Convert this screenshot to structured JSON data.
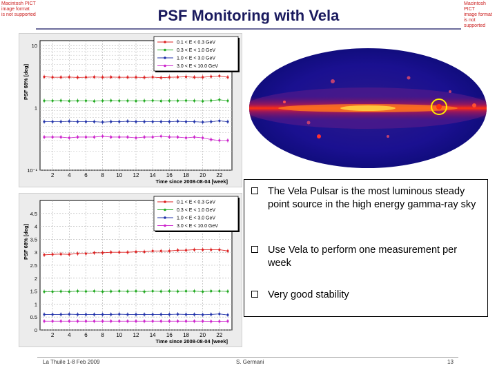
{
  "slide": {
    "title": "PSF Monitoring with Vela",
    "pict_notice": [
      "Macintosh PICT",
      "image format",
      "is not supported"
    ],
    "footer_left": "La Thuile 1-8 Feb 2009",
    "footer_center": "S. Germani",
    "page_number": "13"
  },
  "bullets": [
    "The Vela Pulsar is the most luminous steady point source in the high energy gamma-ray sky",
    "Use Vela to perform one measurement per week",
    "Very good stability"
  ],
  "colors": {
    "series": [
      "#dd2222",
      "#22aa22",
      "#2233aa",
      "#cc22cc"
    ],
    "title": "#1a1a5e",
    "marker": "#ffee00"
  },
  "skymap": {
    "marker_icon": "circle-marker-icon",
    "source": "Vela"
  },
  "chart_data": [
    {
      "type": "scatter",
      "title": "",
      "xlabel": "Time since 2008-08-04 [week]",
      "ylabel": "PSF 68% [deg]",
      "yscale": "log",
      "xlim": [
        0.5,
        23.5
      ],
      "ylim": [
        0.1,
        12
      ],
      "xticks": [
        2,
        4,
        6,
        8,
        10,
        12,
        14,
        16,
        18,
        20,
        22
      ],
      "yticks": [
        {
          "v": 0.1,
          "label": "10⁻¹"
        },
        {
          "v": 1,
          "label": "1"
        },
        {
          "v": 10,
          "label": "10"
        }
      ],
      "legend_position": "top-right",
      "x": [
        1,
        2,
        3,
        4,
        5,
        6,
        7,
        8,
        9,
        10,
        11,
        12,
        13,
        14,
        15,
        16,
        17,
        18,
        19,
        20,
        21,
        22,
        23
      ],
      "series": [
        {
          "name": "0.1 < E < 0.3 GeV",
          "values": [
            3.15,
            3.1,
            3.1,
            3.12,
            3.08,
            3.1,
            3.13,
            3.1,
            3.12,
            3.1,
            3.1,
            3.1,
            3.08,
            3.12,
            3.05,
            3.1,
            3.12,
            3.15,
            3.1,
            3.1,
            3.18,
            3.25,
            3.1
          ]
        },
        {
          "name": "0.3 < E < 1.0 GeV",
          "values": [
            1.3,
            1.3,
            1.31,
            1.29,
            1.3,
            1.3,
            1.28,
            1.3,
            1.31,
            1.3,
            1.3,
            1.29,
            1.3,
            1.31,
            1.29,
            1.3,
            1.3,
            1.31,
            1.3,
            1.28,
            1.31,
            1.35,
            1.3
          ]
        },
        {
          "name": "1.0 < E < 3.0 GeV",
          "values": [
            0.6,
            0.6,
            0.6,
            0.61,
            0.6,
            0.6,
            0.6,
            0.59,
            0.6,
            0.6,
            0.61,
            0.6,
            0.6,
            0.6,
            0.6,
            0.6,
            0.61,
            0.6,
            0.6,
            0.59,
            0.6,
            0.62,
            0.6
          ]
        },
        {
          "name": "3.0 < E < 10.0 GeV",
          "values": [
            0.34,
            0.34,
            0.34,
            0.33,
            0.34,
            0.34,
            0.34,
            0.35,
            0.34,
            0.34,
            0.34,
            0.33,
            0.34,
            0.34,
            0.35,
            0.34,
            0.34,
            0.33,
            0.34,
            0.33,
            0.31,
            0.3,
            0.3
          ]
        }
      ]
    },
    {
      "type": "scatter",
      "title": "",
      "xlabel": "Time since 2008-08-04 [week]",
      "ylabel": "PSF 68% [deg]",
      "yscale": "linear",
      "xlim": [
        0.5,
        23.5
      ],
      "ylim": [
        0,
        5
      ],
      "xticks": [
        2,
        4,
        6,
        8,
        10,
        12,
        14,
        16,
        18,
        20,
        22
      ],
      "yticks": [
        {
          "v": 0,
          "label": "0"
        },
        {
          "v": 0.5,
          "label": "0.5"
        },
        {
          "v": 1,
          "label": "1"
        },
        {
          "v": 1.5,
          "label": "1.5"
        },
        {
          "v": 2,
          "label": "2"
        },
        {
          "v": 2.5,
          "label": "2.5"
        },
        {
          "v": 3,
          "label": "3"
        },
        {
          "v": 3.5,
          "label": "3.5"
        },
        {
          "v": 4,
          "label": "4"
        },
        {
          "v": 4.5,
          "label": "4.5"
        }
      ],
      "legend_position": "top-right",
      "x": [
        1,
        2,
        3,
        4,
        5,
        6,
        7,
        8,
        9,
        10,
        11,
        12,
        13,
        14,
        15,
        16,
        17,
        18,
        19,
        20,
        21,
        22,
        23
      ],
      "series": [
        {
          "name": "0.1 < E < 0.3 GeV",
          "values": [
            2.9,
            2.92,
            2.93,
            2.92,
            2.95,
            2.95,
            2.98,
            2.98,
            3.0,
            3.0,
            3.0,
            3.02,
            3.02,
            3.05,
            3.05,
            3.05,
            3.08,
            3.08,
            3.1,
            3.1,
            3.1,
            3.1,
            3.05
          ]
        },
        {
          "name": "0.3 < E < 1.0 GeV",
          "values": [
            1.48,
            1.48,
            1.49,
            1.48,
            1.5,
            1.49,
            1.5,
            1.48,
            1.49,
            1.5,
            1.49,
            1.5,
            1.48,
            1.5,
            1.49,
            1.5,
            1.49,
            1.5,
            1.5,
            1.48,
            1.5,
            1.5,
            1.49
          ]
        },
        {
          "name": "1.0 < E < 3.0 GeV",
          "values": [
            0.6,
            0.6,
            0.6,
            0.61,
            0.6,
            0.6,
            0.6,
            0.6,
            0.6,
            0.61,
            0.6,
            0.6,
            0.6,
            0.6,
            0.6,
            0.6,
            0.61,
            0.6,
            0.6,
            0.59,
            0.6,
            0.62,
            0.58
          ]
        },
        {
          "name": "3.0 < E < 10.0 GeV",
          "values": [
            0.34,
            0.34,
            0.34,
            0.34,
            0.34,
            0.34,
            0.34,
            0.34,
            0.34,
            0.34,
            0.34,
            0.34,
            0.34,
            0.34,
            0.34,
            0.34,
            0.34,
            0.34,
            0.34,
            0.34,
            0.33,
            0.33,
            0.34
          ]
        }
      ]
    }
  ]
}
